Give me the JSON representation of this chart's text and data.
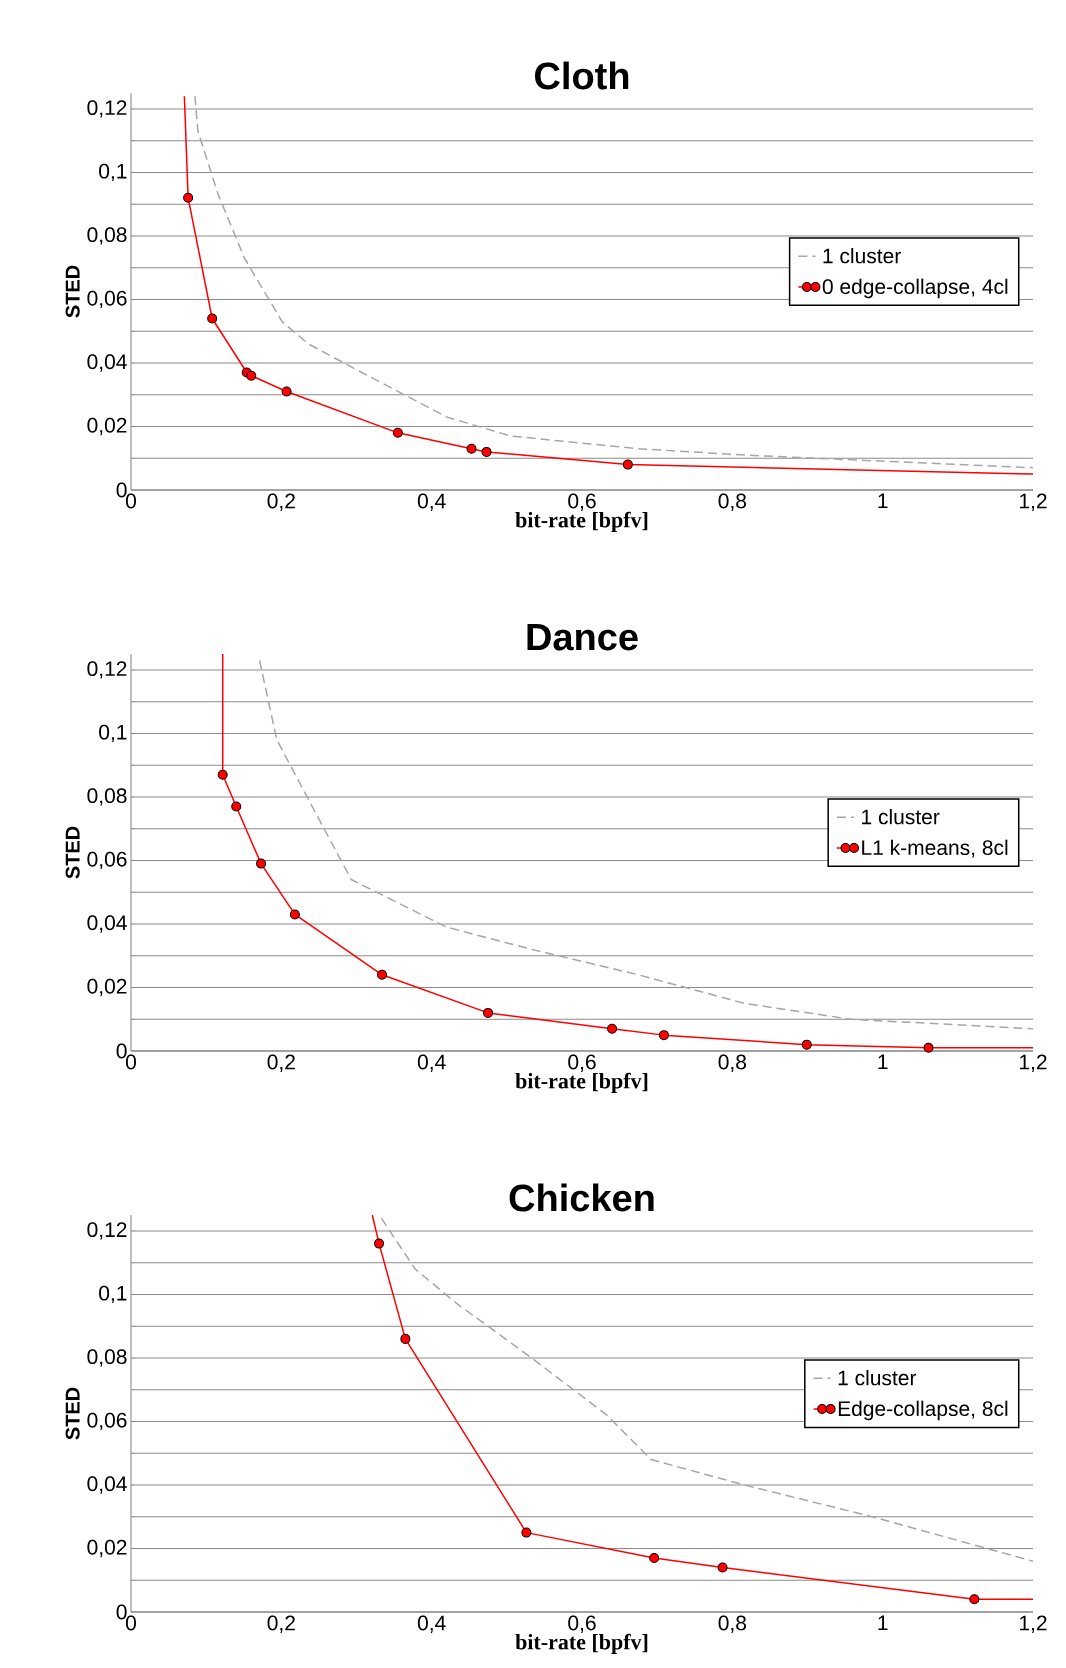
{
  "chart_data": [
    {
      "type": "line",
      "title": "Cloth",
      "xlabel": "bit-rate [bpfv]",
      "ylabel": "STED",
      "xlim": [
        0,
        1.2
      ],
      "ylim": [
        0,
        0.125
      ],
      "xticks": [
        0,
        {
          "value": 0.2,
          "label": "0,2"
        },
        {
          "value": 0.4,
          "label": "0,4"
        },
        {
          "value": 0.6,
          "label": "0,6"
        },
        {
          "value": 0.8,
          "label": "0,8"
        },
        1,
        {
          "value": 1.2,
          "label": "1,2"
        }
      ],
      "yticks": [
        0,
        {
          "value": 0.01,
          "label": null
        },
        {
          "value": 0.02,
          "label": "0,02"
        },
        {
          "value": 0.03,
          "label": null
        },
        {
          "value": 0.04,
          "label": "0,04"
        },
        {
          "value": 0.05,
          "label": null
        },
        {
          "value": 0.06,
          "label": "0,06"
        },
        {
          "value": 0.07,
          "label": null
        },
        {
          "value": 0.08,
          "label": "0,08"
        },
        {
          "value": 0.09,
          "label": null
        },
        {
          "value": 0.1,
          "label": "0,1"
        },
        {
          "value": 0.11,
          "label": null
        },
        {
          "value": 0.12,
          "label": "0,12"
        }
      ],
      "grid": "y",
      "legend": "right",
      "series": [
        {
          "name": "1 cluster",
          "color": "#a6a6a6",
          "line_style": "dashed",
          "marker": "none",
          "x": [
            0.085,
            0.089,
            0.116,
            0.151,
            0.201,
            0.236,
            0.307,
            0.42,
            0.505,
            0.675,
            0.816,
            1.2
          ],
          "values": [
            0.124,
            0.113,
            0.093,
            0.073,
            0.053,
            0.046,
            0.037,
            0.023,
            0.017,
            0.013,
            0.011,
            0.007
          ]
        },
        {
          "name": "0 edge-collapse, 4cl",
          "color": "#ff0000",
          "line_style": "solid",
          "marker": "circle",
          "x": [
            0.071,
            0.076,
            0.108,
            0.154,
            0.16,
            0.207,
            0.355,
            0.453,
            0.473,
            0.661,
            1.2
          ],
          "values": [
            0.124,
            0.092,
            0.054,
            0.037,
            0.036,
            0.031,
            0.018,
            0.013,
            0.012,
            0.008,
            0.005
          ]
        }
      ]
    },
    {
      "type": "line",
      "title": "Dance",
      "xlabel": "bit-rate [bpfv]",
      "ylabel": "STED",
      "xlim": [
        0,
        1.2
      ],
      "ylim": [
        0,
        0.125
      ],
      "xticks": [
        0,
        {
          "value": 0.2,
          "label": "0,2"
        },
        {
          "value": 0.4,
          "label": "0,4"
        },
        {
          "value": 0.6,
          "label": "0,6"
        },
        {
          "value": 0.8,
          "label": "0,8"
        },
        1,
        {
          "value": 1.2,
          "label": "1,2"
        }
      ],
      "yticks": [
        0,
        {
          "value": 0.01,
          "label": null
        },
        {
          "value": 0.02,
          "label": "0,02"
        },
        {
          "value": 0.03,
          "label": null
        },
        {
          "value": 0.04,
          "label": "0,04"
        },
        {
          "value": 0.05,
          "label": null
        },
        {
          "value": 0.06,
          "label": "0,06"
        },
        {
          "value": 0.07,
          "label": null
        },
        {
          "value": 0.08,
          "label": "0,08"
        },
        {
          "value": 0.09,
          "label": null
        },
        {
          "value": 0.1,
          "label": "0,1"
        },
        {
          "value": 0.11,
          "label": null
        },
        {
          "value": 0.12,
          "label": "0,12"
        }
      ],
      "grid": "y",
      "legend": "right",
      "series": [
        {
          "name": "1 cluster",
          "color": "#a6a6a6",
          "line_style": "dashed",
          "marker": "none",
          "x": [
            0.171,
            0.194,
            0.25,
            0.293,
            0.42,
            0.533,
            0.675,
            0.816,
            0.958,
            1.2
          ],
          "values": [
            0.123,
            0.098,
            0.073,
            0.054,
            0.039,
            0.032,
            0.024,
            0.015,
            0.01,
            0.007
          ]
        },
        {
          "name": "L1 k-means, 8cl",
          "color": "#ff0000",
          "line_style": "solid",
          "marker": "circle",
          "x": [
            0.122,
            0.122,
            0.14,
            0.173,
            0.218,
            0.334,
            0.475,
            0.64,
            0.709,
            0.899,
            1.061,
            1.2
          ],
          "values": [
            0.125,
            0.087,
            0.077,
            0.059,
            0.043,
            0.024,
            0.012,
            0.007,
            0.005,
            0.002,
            0.001,
            0.001
          ]
        }
      ]
    },
    {
      "type": "line",
      "title": "Chicken",
      "xlabel": "bit-rate [bpfv]",
      "ylabel": "STED",
      "xlim": [
        0,
        1.2
      ],
      "ylim": [
        0,
        0.125
      ],
      "xticks": [
        0,
        {
          "value": 0.2,
          "label": "0,2"
        },
        {
          "value": 0.4,
          "label": "0,4"
        },
        {
          "value": 0.6,
          "label": "0,6"
        },
        {
          "value": 0.8,
          "label": "0,8"
        },
        1,
        {
          "value": 1.2,
          "label": "1,2"
        }
      ],
      "yticks": [
        0,
        {
          "value": 0.01,
          "label": null
        },
        {
          "value": 0.02,
          "label": "0,02"
        },
        {
          "value": 0.03,
          "label": null
        },
        {
          "value": 0.04,
          "label": "0,04"
        },
        {
          "value": 0.05,
          "label": null
        },
        {
          "value": 0.06,
          "label": "0,06"
        },
        {
          "value": 0.07,
          "label": null
        },
        {
          "value": 0.08,
          "label": "0,08"
        },
        {
          "value": 0.09,
          "label": null
        },
        {
          "value": 0.1,
          "label": "0,1"
        },
        {
          "value": 0.11,
          "label": null
        },
        {
          "value": 0.12,
          "label": "0,12"
        }
      ],
      "grid": "y",
      "legend": "right",
      "series": [
        {
          "name": "1 cluster",
          "color": "#a6a6a6",
          "line_style": "dashed",
          "marker": "none",
          "x": [
            0.333,
            0.378,
            0.434,
            0.533,
            0.633,
            0.692,
            0.816,
            0.986,
            1.2
          ],
          "values": [
            0.124,
            0.108,
            0.097,
            0.08,
            0.062,
            0.048,
            0.04,
            0.03,
            0.016
          ]
        },
        {
          "name": "Edge-collapse, 8cl",
          "color": "#ff0000",
          "line_style": "solid",
          "marker": "circle",
          "x": [
            0.321,
            0.33,
            0.365,
            0.526,
            0.696,
            0.787,
            1.122,
            1.2
          ],
          "values": [
            0.125,
            0.116,
            0.086,
            0.025,
            0.017,
            0.014,
            0.004,
            0.004
          ]
        }
      ]
    }
  ]
}
